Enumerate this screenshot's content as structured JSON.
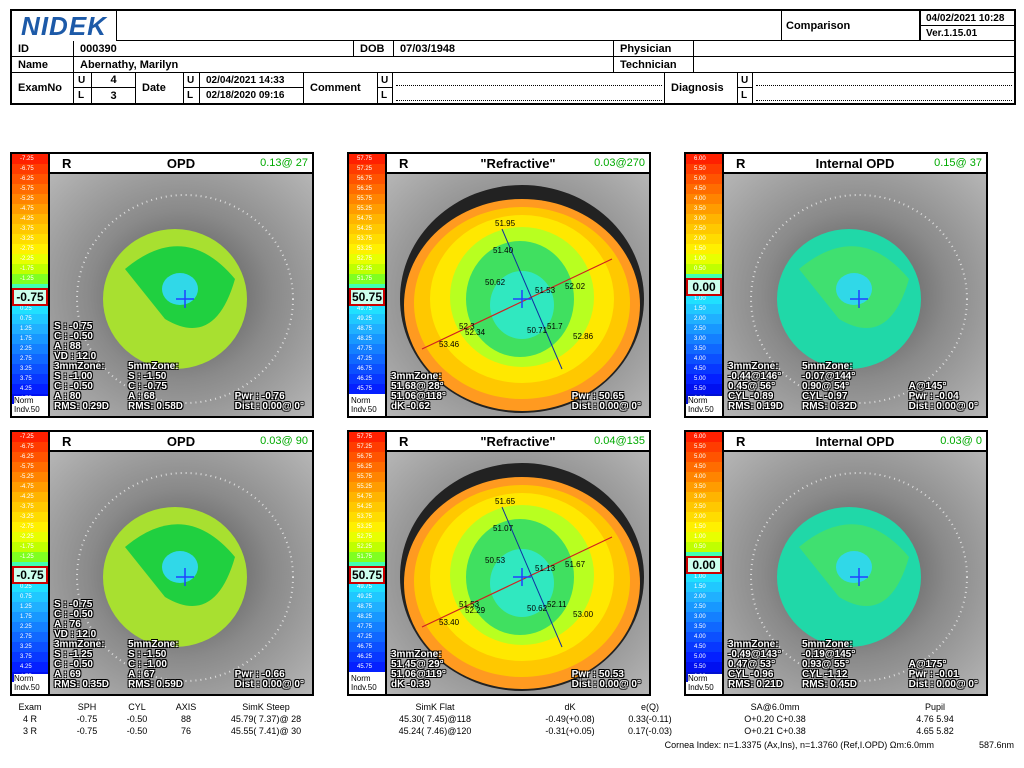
{
  "header": {
    "logo": "NIDEK",
    "title": "Comparison",
    "datetime": "04/02/2021 10:28",
    "version": "Ver.1.15.01",
    "id_label": "ID",
    "id": "000390",
    "dob_label": "DOB",
    "dob": "07/03/1948",
    "physician_label": "Physician",
    "technician_label": "Technician",
    "name_label": "Name",
    "name": "Abernathy, Marilyn",
    "examno_label": "ExamNo",
    "exam_u": "4",
    "exam_l": "3",
    "date_label": "Date",
    "date_u": "02/04/2021 14:33",
    "date_l": "02/18/2020 09:16",
    "comment_label": "Comment",
    "diagnosis_label": "Diagnosis",
    "u": "U",
    "l": "L"
  },
  "panels": [
    {
      "eye": "R",
      "name": "OPD",
      "rms": "0.13@ 27",
      "scale_value": "-0.75",
      "norm": "Norm\nIndv.50",
      "left_text": "S : -0.75\nC : -0.50\nA : 88\nVD : 12.0\n3mmZone:\nS : -1.00\nC : -0.50\nA : 80\nRMS: 0.29D",
      "mid_text": "5mmZone:\nS : -1.50\nC : -0.75\nA : 68\nRMS: 0.58D",
      "right_text": "Pwr : -0.76\nDist : 0.00@ 0°"
    },
    {
      "eye": "R",
      "name": "\"Refractive\"",
      "rms": "0.03@270",
      "scale_value": "50.75",
      "norm": "Norm\nIndv.50",
      "left_text": "3mmZone:\n51.68@ 28°\n51.06@118°\ndK -0.62",
      "mid_text": "",
      "right_text": "Pwr : 50.65\nDist : 0.00@ 0°"
    },
    {
      "eye": "R",
      "name": "Internal OPD",
      "rms": "0.15@ 37",
      "scale_value": "0.00",
      "norm": "Norm\nIndv.50",
      "left_text": "3mmZone:\n-0.44@146°\n0.45@ 56°\nCYL -0.89\nRMS: 0.19D",
      "mid_text": "5mmZone:\n-0.07@144°\n0.90@ 54°\nCYL -0.97\nRMS: 0.32D",
      "right_text": "A@145°\nPwr : -0.04\nDist : 0.00@ 0°"
    },
    {
      "eye": "R",
      "name": "OPD",
      "rms": "0.03@ 90",
      "scale_value": "-0.75",
      "norm": "Norm\nIndv.50",
      "left_text": "S : -0.75\nC : -0.50\nA : 76\nVD : 12.0\n3mmZone:\nS : -1.25\nC : -0.50\nA : 69\nRMS: 0.35D",
      "mid_text": "5mmZone:\nS : -1.50\nC : -1.00\nA : 67\nRMS: 0.59D",
      "right_text": "Pwr : -0.66\nDist : 0.00@ 0°"
    },
    {
      "eye": "R",
      "name": "\"Refractive\"",
      "rms": "0.04@135",
      "scale_value": "50.75",
      "norm": "Norm\nIndv.50",
      "left_text": "3mmZone:\n51.45@ 29°\n51.06@119°\ndK -0.39",
      "mid_text": "",
      "right_text": "Pwr : 50.53\nDist : 0.00@ 0°"
    },
    {
      "eye": "R",
      "name": "Internal OPD",
      "rms": "0.03@ 0",
      "scale_value": "0.00",
      "norm": "Norm\nIndv.50",
      "left_text": "3mmZone:\n-0.49@143°\n0.47@ 53°\nCYL -0.96\nRMS: 0.21D",
      "mid_text": "5mmZone:\n-0.19@145°\n0.93@ 55°\nCYL -1.12\nRMS: 0.45D",
      "right_text": "A@175°\nPwr : -0.01\nDist : 0.00@ 0°"
    }
  ],
  "scales": {
    "opd": [
      "-7.25",
      "-6.75",
      "-6.25",
      "-5.75",
      "-5.25",
      "-4.75",
      "-4.25",
      "-3.75",
      "-3.25",
      "-2.75",
      "-2.25",
      "-1.75",
      "-1.25",
      "",
      "-0.25",
      "0.25",
      "0.75",
      "1.25",
      "1.75",
      "2.25",
      "2.75",
      "3.25",
      "3.75",
      "4.25",
      "4.75"
    ],
    "ref": [
      "57.75",
      "57.25",
      "56.75",
      "56.25",
      "55.75",
      "55.25",
      "54.75",
      "54.25",
      "53.75",
      "53.25",
      "52.75",
      "52.25",
      "51.75",
      "",
      "50.25",
      "49.75",
      "49.25",
      "48.75",
      "48.25",
      "47.75",
      "47.25",
      "46.75",
      "46.25",
      "45.75"
    ],
    "int": [
      "6.00",
      "5.50",
      "5.00",
      "4.50",
      "4.00",
      "3.50",
      "3.00",
      "2.50",
      "2.00",
      "1.50",
      "1.00",
      "0.50",
      "",
      "0.50",
      "1.00",
      "1.50",
      "2.00",
      "2.50",
      "3.00",
      "3.50",
      "4.00",
      "4.50",
      "5.00",
      "5.50",
      "6.00"
    ]
  },
  "refr_values_top": [
    "51.95",
    "51.40",
    "50.62",
    "51.53",
    "52.02",
    "52.3",
    "52.34",
    "53.46",
    "50.71",
    "51.7",
    "52.86"
  ],
  "refr_values_bot": [
    "51.65",
    "51.07",
    "50.53",
    "51.13",
    "51.67",
    "51.53",
    "52.29",
    "53.40",
    "50.62",
    "52.11",
    "53.00"
  ],
  "footer": {
    "headers": [
      "Exam",
      "SPH",
      "CYL",
      "AXIS",
      "SimK Steep",
      "SimK Flat",
      "dK",
      "e(Q)",
      "SA@6.0mm",
      "Pupil"
    ],
    "rows": [
      [
        "4 R",
        "-0.75",
        "-0.50",
        "88",
        "45.79( 7.37)@ 28",
        "45.30( 7.45)@118",
        "-0.49(+0.08)",
        "0.33(-0.11)",
        "O+0.20  C+0.38",
        "4.76  5.94"
      ],
      [
        "3 R",
        "-0.75",
        "-0.50",
        "76",
        "45.55( 7.41)@ 30",
        "45.24( 7.46)@120",
        "-0.31(+0.05)",
        "0.17(-0.03)",
        "O+0.21  C+0.38",
        "4.65  5.82"
      ]
    ],
    "note": "Cornea Index: n=1.3375 (Ax,Ins), n=1.3760 (Ref,I.OPD)  Ωm:6.0mm",
    "scale": "587.6nm"
  },
  "colors": {
    "accent": "#1d5aa8",
    "rms": "#00aa00",
    "highlight": "#cc0000"
  }
}
